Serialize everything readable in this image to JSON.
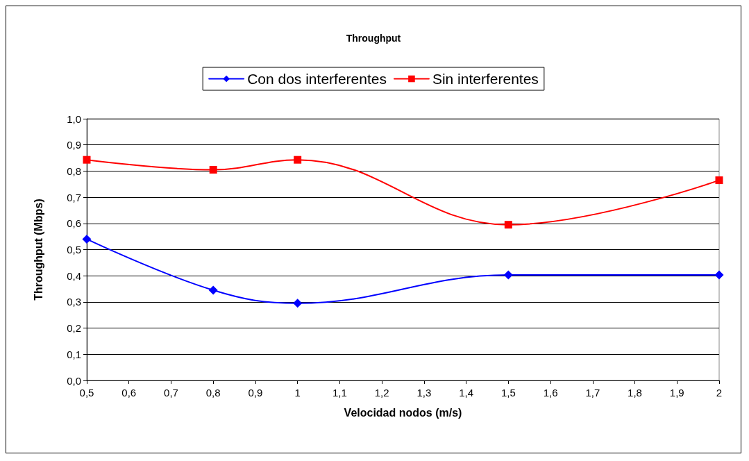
{
  "chart_data": {
    "type": "line",
    "title": "Throughput",
    "xlabel": "Velocidad nodos (m/s)",
    "ylabel": "Throughput (Mbps)",
    "x": [
      0.5,
      0.8,
      1,
      1.5,
      2
    ],
    "series": [
      {
        "name": "Con dos interferentes",
        "color": "#0000ff",
        "marker": "diamond",
        "values": [
          0.54,
          0.345,
          0.295,
          0.403,
          0.403
        ]
      },
      {
        "name": "Sin interferentes",
        "color": "#ff0000",
        "marker": "square",
        "values": [
          0.843,
          0.805,
          0.843,
          0.595,
          0.765
        ]
      }
    ],
    "xlim": [
      0.5,
      2
    ],
    "xticks": [
      {
        "value": 0.5,
        "label": "0,5"
      },
      {
        "value": 0.6,
        "label": "0,6"
      },
      {
        "value": 0.7,
        "label": "0,7"
      },
      {
        "value": 0.8,
        "label": "0,8"
      },
      {
        "value": 0.9,
        "label": "0,9"
      },
      1,
      {
        "value": 1.1,
        "label": "1,1"
      },
      {
        "value": 1.2,
        "label": "1,2"
      },
      {
        "value": 1.3,
        "label": "1,3"
      },
      {
        "value": 1.4,
        "label": "1,4"
      },
      {
        "value": 1.5,
        "label": "1,5"
      },
      {
        "value": 1.6,
        "label": "1,6"
      },
      {
        "value": 1.7,
        "label": "1,7"
      },
      {
        "value": 1.8,
        "label": "1,8"
      },
      {
        "value": 1.9,
        "label": "1,9"
      },
      2
    ],
    "ylim": [
      0,
      1
    ],
    "yticks": [
      {
        "value": 0,
        "label": "0,0"
      },
      {
        "value": 0.1,
        "label": "0,1"
      },
      {
        "value": 0.2,
        "label": "0,2"
      },
      {
        "value": 0.3,
        "label": "0,3"
      },
      {
        "value": 0.4,
        "label": "0,4"
      },
      {
        "value": 0.5,
        "label": "0,5"
      },
      {
        "value": 0.6,
        "label": "0,6"
      },
      {
        "value": 0.7,
        "label": "0,7"
      },
      {
        "value": 0.8,
        "label": "0,8"
      },
      {
        "value": 0.9,
        "label": "0,9"
      },
      {
        "value": 1,
        "label": "1,0"
      }
    ],
    "grid": "y",
    "legend": "top"
  }
}
